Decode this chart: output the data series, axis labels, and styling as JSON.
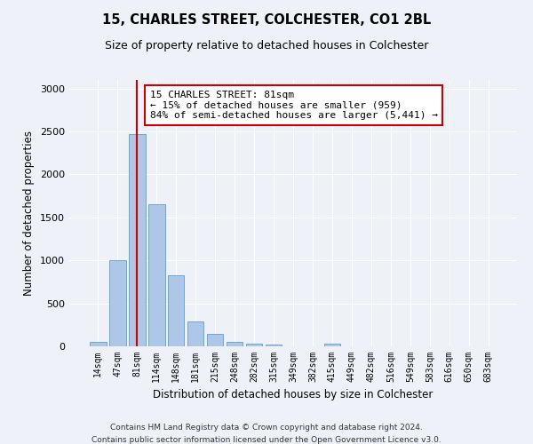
{
  "title1": "15, CHARLES STREET, COLCHESTER, CO1 2BL",
  "title2": "Size of property relative to detached houses in Colchester",
  "xlabel": "Distribution of detached houses by size in Colchester",
  "ylabel": "Number of detached properties",
  "categories": [
    "14sqm",
    "47sqm",
    "81sqm",
    "114sqm",
    "148sqm",
    "181sqm",
    "215sqm",
    "248sqm",
    "282sqm",
    "315sqm",
    "349sqm",
    "382sqm",
    "415sqm",
    "449sqm",
    "482sqm",
    "516sqm",
    "549sqm",
    "583sqm",
    "616sqm",
    "650sqm",
    "683sqm"
  ],
  "values": [
    55,
    1000,
    2470,
    1650,
    830,
    290,
    145,
    55,
    35,
    25,
    0,
    0,
    35,
    0,
    0,
    0,
    0,
    0,
    0,
    0,
    0
  ],
  "bar_color": "#aec6e8",
  "bar_edgecolor": "#5a9fd4",
  "vline_x": 2,
  "vline_color": "#cc0000",
  "annotation_text": "15 CHARLES STREET: 81sqm\n← 15% of detached houses are smaller (959)\n84% of semi-detached houses are larger (5,441) →",
  "annotation_box_color": "#ffffff",
  "annotation_box_edgecolor": "#cc0000",
  "ylim": [
    0,
    3100
  ],
  "yticks": [
    0,
    500,
    1000,
    1500,
    2000,
    2500,
    3000
  ],
  "footer1": "Contains HM Land Registry data © Crown copyright and database right 2024.",
  "footer2": "Contains public sector information licensed under the Open Government Licence v3.0.",
  "bg_color": "#eef2f8",
  "plot_bg_color": "#eef2f8"
}
